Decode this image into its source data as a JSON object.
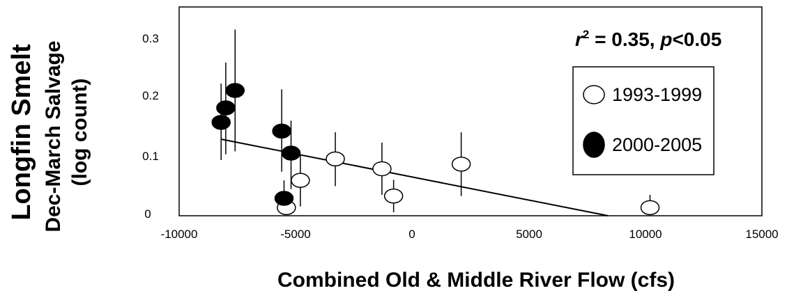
{
  "chart_data": {
    "type": "scatter",
    "species_label": "Longfin Smelt",
    "species_color": "#a020e0",
    "ylabel_line1": "Dec-March Salvage",
    "ylabel_line2": "(log count)",
    "xlabel": "Combined Old & Middle River Flow (cfs)",
    "xlim": [
      -10000,
      15000
    ],
    "ylim": [
      0,
      0.35
    ],
    "xticks": [
      -10000,
      -5000,
      0,
      5000,
      10000,
      15000
    ],
    "xtick_labels": [
      "-10000",
      "-5000",
      "0",
      "5000",
      "10000",
      "15000"
    ],
    "yticks": [
      0,
      0.1,
      0.2,
      0.3
    ],
    "ytick_labels": [
      "0",
      "0.1",
      "0.2",
      "0.3"
    ],
    "annotation": {
      "r_symbol": "r",
      "r_exp": "2",
      "r_value": " = 0.35, ",
      "p_symbol": "p",
      "p_value": "<0.05"
    },
    "legend": {
      "placement": "right",
      "entries": [
        {
          "label": "1993-1999",
          "marker": "open-circle"
        },
        {
          "label": "2000-2005",
          "marker": "filled-circle"
        }
      ]
    },
    "series": [
      {
        "name": "1993-1999",
        "marker": "open-circle",
        "points": [
          {
            "x": -5400,
            "y": 0.008,
            "ylo": 0.0,
            "yhi": 0.02
          },
          {
            "x": -4800,
            "y": 0.055,
            "ylo": 0.01,
            "yhi": 0.1
          },
          {
            "x": -3300,
            "y": 0.092,
            "ylo": 0.045,
            "yhi": 0.138
          },
          {
            "x": -1300,
            "y": 0.075,
            "ylo": 0.03,
            "yhi": 0.12
          },
          {
            "x": -800,
            "y": 0.028,
            "ylo": 0.0,
            "yhi": 0.056
          },
          {
            "x": 2100,
            "y": 0.083,
            "ylo": 0.028,
            "yhi": 0.138
          },
          {
            "x": 10200,
            "y": 0.008,
            "ylo": 0.0,
            "yhi": 0.03
          }
        ]
      },
      {
        "name": "2000-2005",
        "marker": "filled-circle",
        "points": [
          {
            "x": -8200,
            "y": 0.155,
            "ylo": 0.09,
            "yhi": 0.222
          },
          {
            "x": -8000,
            "y": 0.18,
            "ylo": 0.1,
            "yhi": 0.258
          },
          {
            "x": -7600,
            "y": 0.21,
            "ylo": 0.105,
            "yhi": 0.315
          },
          {
            "x": -5600,
            "y": 0.14,
            "ylo": 0.07,
            "yhi": 0.212
          },
          {
            "x": -5200,
            "y": 0.102,
            "ylo": 0.04,
            "yhi": 0.158
          },
          {
            "x": -5500,
            "y": 0.024,
            "ylo": 0.0,
            "yhi": 0.055
          }
        ]
      }
    ],
    "trendline": {
      "x": [
        -8200,
        8400
      ],
      "y": [
        0.126,
        0.0
      ]
    }
  }
}
